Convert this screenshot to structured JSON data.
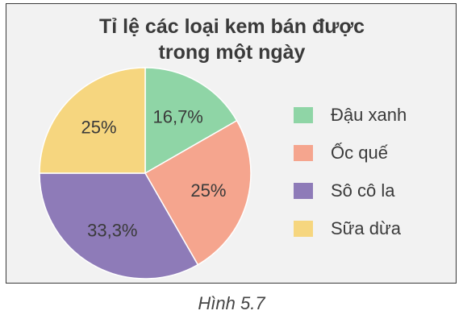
{
  "figure": {
    "caption": "Hình 5.7"
  },
  "chart_data": {
    "type": "pie",
    "title_lines": [
      "Tỉ lệ các loại kem bán được",
      "trong một ngày"
    ],
    "slices": [
      {
        "name": "Đậu xanh",
        "value": 16.7,
        "label": "16,7%",
        "color": "#8fd5a6"
      },
      {
        "name": "Ốc quế",
        "value": 25,
        "label": "25%",
        "color": "#f5a58e"
      },
      {
        "name": "Sô cô la",
        "value": 33.3,
        "label": "33,3%",
        "color": "#8e7bb8"
      },
      {
        "name": "Sữa dừa",
        "value": 25,
        "label": "25%",
        "color": "#f6d67f"
      }
    ],
    "start": "12 o'clock",
    "direction": "clockwise",
    "legend_position": "right"
  }
}
